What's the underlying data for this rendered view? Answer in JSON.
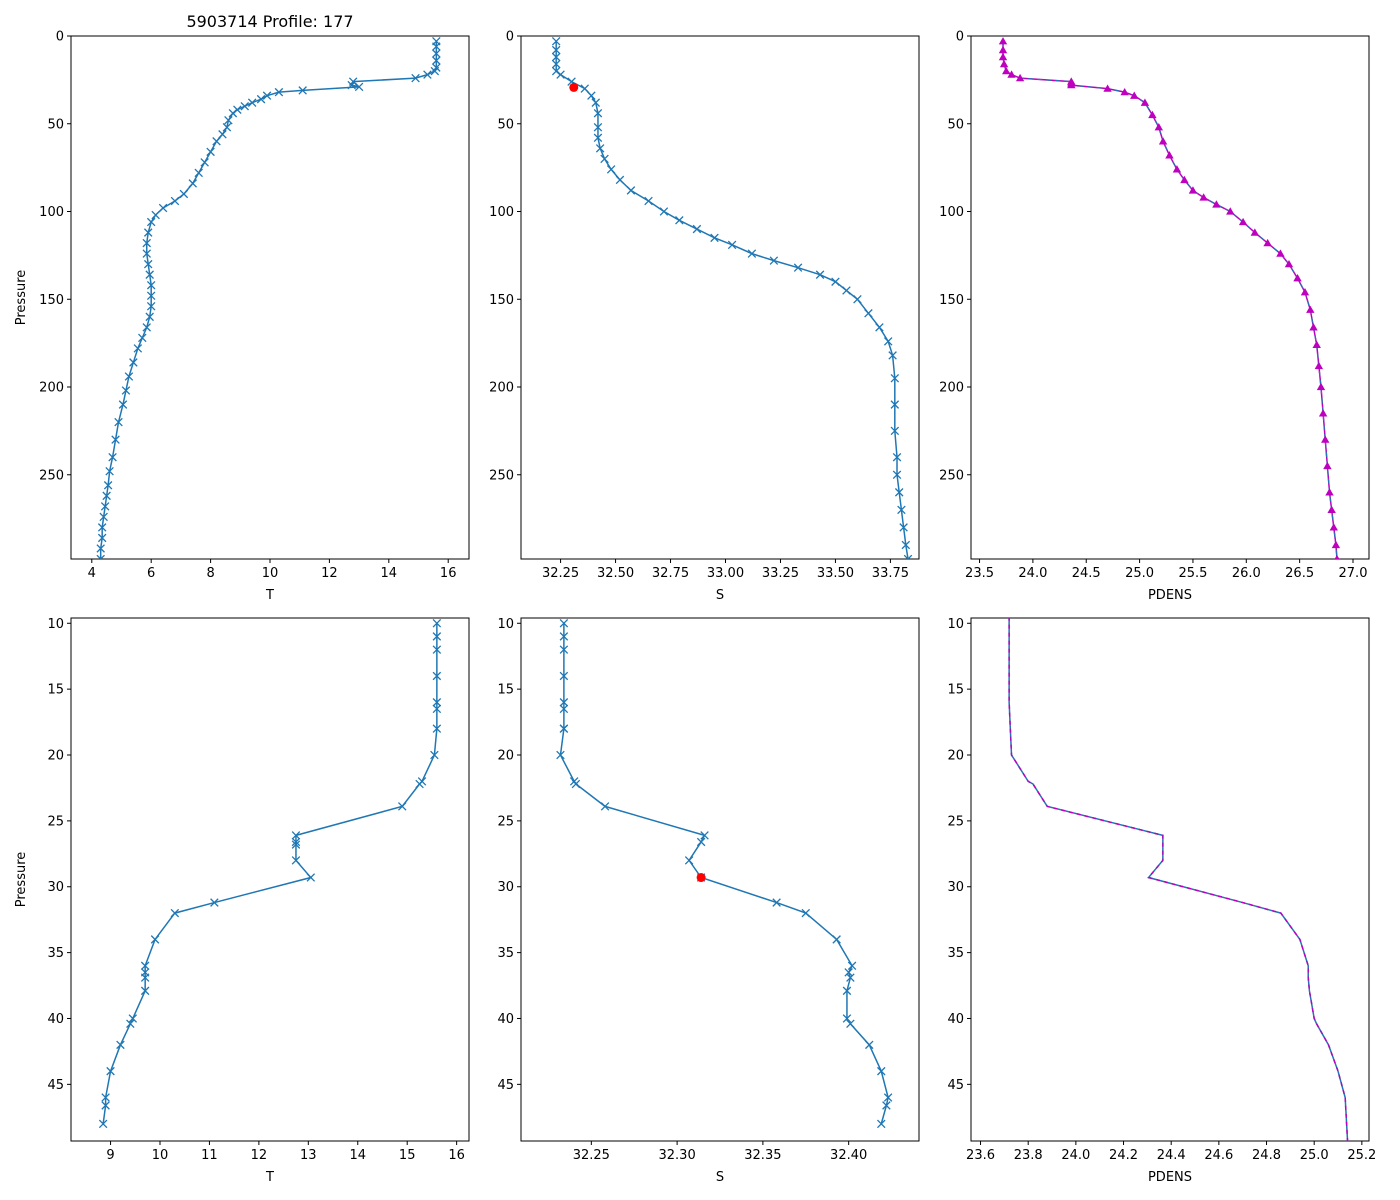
{
  "title": "5903714 Profile: 177",
  "colors": {
    "series": "#1f77b4",
    "marker_red": "#ff0000",
    "density": "#bf00bf",
    "density_dash": "#1f77b4"
  },
  "chart_data": [
    {
      "id": "top-T",
      "type": "line",
      "marker": "x",
      "xlabel": "T",
      "ylabel": "Pressure",
      "xlim": [
        3.3,
        16.7
      ],
      "ylim": [
        298,
        0
      ],
      "invert_y": true,
      "xticks": [
        4,
        6,
        8,
        10,
        12,
        14,
        16
      ],
      "yticks": [
        0,
        50,
        100,
        150,
        200,
        250
      ],
      "x": [
        15.6,
        15.6,
        15.6,
        15.6,
        15.6,
        15.55,
        15.3,
        14.9,
        12.8,
        12.75,
        13.0,
        11.1,
        10.3,
        9.9,
        9.7,
        9.4,
        9.15,
        8.9,
        8.75,
        8.6,
        8.55,
        8.4,
        8.2,
        8.0,
        7.8,
        7.6,
        7.4,
        7.1,
        6.8,
        6.4,
        6.15,
        6.0,
        5.9,
        5.85,
        5.85,
        5.9,
        5.95,
        6.0,
        6.0,
        6.0,
        5.95,
        5.85,
        5.7,
        5.55,
        5.4,
        5.25,
        5.15,
        5.05,
        4.9,
        4.8,
        4.7,
        4.6,
        4.55,
        4.5,
        4.45,
        4.4,
        4.35,
        4.35,
        4.3,
        4.3
      ],
      "y": [
        3,
        6,
        10,
        14,
        18,
        20,
        22,
        24,
        26,
        28,
        29,
        31,
        32,
        34,
        36,
        38,
        40,
        42,
        44,
        48,
        52,
        56,
        60,
        66,
        72,
        78,
        84,
        90,
        94,
        98,
        102,
        106,
        112,
        118,
        124,
        130,
        136,
        142,
        148,
        154,
        160,
        166,
        172,
        178,
        186,
        194,
        202,
        210,
        220,
        230,
        240,
        248,
        256,
        262,
        268,
        274,
        280,
        286,
        292,
        298
      ]
    },
    {
      "id": "top-S",
      "type": "line",
      "marker": "x",
      "xlabel": "S",
      "ylabel": "",
      "xlim": [
        32.07,
        33.88
      ],
      "ylim": [
        298,
        0
      ],
      "invert_y": true,
      "xticks": [
        32.25,
        32.5,
        32.75,
        33.0,
        33.25,
        33.5,
        33.75
      ],
      "xticklabels": [
        "32.25",
        "32.50",
        "32.75",
        "33.00",
        "33.25",
        "33.50",
        "33.75"
      ],
      "yticks": [
        0,
        50,
        100,
        150,
        200,
        250
      ],
      "x": [
        32.23,
        32.23,
        32.23,
        32.23,
        32.23,
        32.25,
        32.3,
        32.36,
        32.39,
        32.41,
        32.42,
        32.42,
        32.42,
        32.43,
        32.45,
        32.48,
        32.52,
        32.57,
        32.65,
        32.72,
        32.79,
        32.87,
        32.95,
        33.03,
        33.12,
        33.22,
        33.33,
        33.43,
        33.5,
        33.55,
        33.6,
        33.65,
        33.7,
        33.74,
        33.76,
        33.77,
        33.77,
        33.77,
        33.78,
        33.78,
        33.79,
        33.8,
        33.81,
        33.82,
        33.83
      ],
      "y": [
        3,
        8,
        12,
        16,
        20,
        22,
        26,
        30,
        34,
        38,
        44,
        52,
        58,
        64,
        70,
        76,
        82,
        88,
        94,
        100,
        105,
        110,
        115,
        119,
        124,
        128,
        132,
        136,
        140,
        145,
        150,
        158,
        166,
        174,
        182,
        195,
        210,
        225,
        240,
        250,
        260,
        270,
        280,
        290,
        298
      ],
      "highlight": {
        "x": 32.31,
        "y": 29.3
      }
    },
    {
      "id": "top-PDENS",
      "type": "line",
      "marker": "^",
      "xlabel": "PDENS",
      "ylabel": "",
      "xlim": [
        23.42,
        27.15
      ],
      "ylim": [
        298,
        0
      ],
      "invert_y": true,
      "xticks": [
        23.5,
        24.0,
        24.5,
        25.0,
        25.5,
        26.0,
        26.5,
        27.0
      ],
      "xticklabels": [
        "23.5",
        "24.0",
        "24.5",
        "25.0",
        "25.5",
        "26.0",
        "26.5",
        "27.0"
      ],
      "yticks": [
        0,
        50,
        100,
        150,
        200,
        250
      ],
      "x": [
        23.72,
        23.72,
        23.72,
        23.73,
        23.75,
        23.8,
        23.88,
        24.36,
        24.36,
        24.36,
        24.7,
        24.86,
        24.95,
        25.05,
        25.12,
        25.18,
        25.22,
        25.28,
        25.35,
        25.42,
        25.5,
        25.6,
        25.72,
        25.85,
        25.97,
        26.08,
        26.2,
        26.32,
        26.4,
        26.48,
        26.55,
        26.6,
        26.63,
        26.66,
        26.68,
        26.7,
        26.72,
        26.74,
        26.76,
        26.78,
        26.8,
        26.82,
        26.84,
        26.85
      ],
      "y": [
        3,
        8,
        12,
        16,
        20,
        22,
        24,
        26,
        27,
        28,
        30,
        32,
        34,
        38,
        45,
        52,
        60,
        68,
        76,
        82,
        88,
        92,
        96,
        100,
        106,
        112,
        118,
        124,
        130,
        138,
        146,
        156,
        166,
        176,
        188,
        200,
        215,
        230,
        245,
        260,
        270,
        280,
        290,
        298
      ]
    },
    {
      "id": "bottom-T",
      "type": "line",
      "marker": "x",
      "xlabel": "T",
      "ylabel": "Pressure",
      "xlim": [
        8.2,
        16.25
      ],
      "ylim": [
        49.3,
        9.6
      ],
      "invert_y": true,
      "xticks": [
        9,
        10,
        11,
        12,
        13,
        14,
        15,
        16
      ],
      "yticks": [
        10,
        15,
        20,
        25,
        30,
        35,
        40,
        45
      ],
      "x": [
        15.6,
        15.6,
        15.6,
        15.6,
        15.6,
        15.6,
        15.6,
        15.55,
        15.3,
        15.25,
        14.9,
        12.75,
        12.75,
        12.75,
        12.75,
        13.05,
        11.1,
        10.3,
        9.9,
        9.7,
        9.7,
        9.7,
        9.7,
        9.45,
        9.4,
        9.2,
        9.0,
        8.9,
        8.9,
        8.85
      ],
      "y": [
        10,
        11,
        12,
        14,
        16,
        16.5,
        18,
        20,
        22,
        22.2,
        23.9,
        26.1,
        26.6,
        26.8,
        28,
        29.3,
        31.2,
        32,
        34,
        36,
        36.5,
        36.9,
        37.9,
        40,
        40.4,
        42,
        44,
        46,
        46.6,
        48
      ]
    },
    {
      "id": "bottom-S",
      "type": "line",
      "marker": "x",
      "xlabel": "S",
      "ylabel": "",
      "xlim": [
        32.209,
        32.441
      ],
      "ylim": [
        49.3,
        9.6
      ],
      "invert_y": true,
      "xticks": [
        32.25,
        32.3,
        32.35,
        32.4
      ],
      "xticklabels": [
        "32.25",
        "32.30",
        "32.35",
        "32.40"
      ],
      "yticks": [
        10,
        15,
        20,
        25,
        30,
        35,
        40,
        45
      ],
      "x": [
        32.234,
        32.234,
        32.234,
        32.234,
        32.234,
        32.234,
        32.234,
        32.234,
        32.232,
        32.24,
        32.241,
        32.258,
        32.316,
        32.314,
        32.307,
        32.314,
        32.358,
        32.375,
        32.393,
        32.402,
        32.4,
        32.401,
        32.399,
        32.399,
        32.401,
        32.412,
        32.419,
        32.423,
        32.422,
        32.419
      ],
      "y": [
        10,
        11,
        12,
        14,
        16,
        16.5,
        18,
        18,
        20,
        22,
        22.2,
        23.9,
        26.1,
        26.6,
        28,
        29.3,
        31.2,
        32,
        34,
        36,
        36.5,
        36.9,
        37.9,
        40,
        40.4,
        42,
        44,
        46,
        46.6,
        48
      ],
      "highlight": {
        "x": 32.314,
        "y": 29.3
      }
    },
    {
      "id": "bottom-PDENS",
      "type": "line",
      "marker": "none",
      "dashed_overlay": true,
      "xlabel": "PDENS",
      "ylabel": "",
      "xlim": [
        23.56,
        25.23
      ],
      "ylim": [
        49.3,
        9.6
      ],
      "invert_y": true,
      "xticks": [
        23.6,
        23.8,
        24.0,
        24.2,
        24.4,
        24.6,
        24.8,
        25.0,
        25.2
      ],
      "xticklabels": [
        "23.6",
        "23.8",
        "24.0",
        "24.2",
        "24.4",
        "24.6",
        "24.8",
        "25.0",
        "25.2"
      ],
      "yticks": [
        10,
        15,
        20,
        25,
        30,
        35,
        40,
        45
      ],
      "x": [
        23.72,
        23.72,
        23.72,
        23.725,
        23.73,
        23.8,
        23.82,
        23.88,
        24.365,
        24.365,
        24.365,
        24.305,
        24.7,
        24.86,
        24.94,
        24.975,
        24.975,
        24.98,
        25.0,
        25.01,
        25.06,
        25.1,
        25.13,
        25.14
      ],
      "y": [
        9.5,
        12,
        16,
        18,
        20,
        22,
        22.2,
        23.9,
        26.1,
        26.8,
        28,
        29.3,
        31.2,
        32,
        34,
        36,
        36.9,
        37.9,
        40,
        40.4,
        42,
        44,
        46,
        49.3
      ]
    }
  ]
}
